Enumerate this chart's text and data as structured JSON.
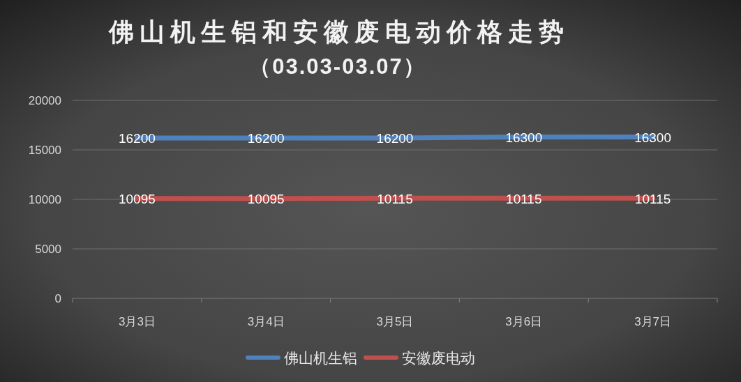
{
  "chart_data": {
    "type": "line",
    "title": "佛山机生铝和安徽废电动价格走势",
    "subtitle": "（03.03-03.07）",
    "categories": [
      "3月3日",
      "3月4日",
      "3月5日",
      "3月6日",
      "3月7日"
    ],
    "series": [
      {
        "name": "佛山机生铝",
        "color": "#4f81bd",
        "values": [
          16200,
          16200,
          16200,
          16300,
          16300
        ]
      },
      {
        "name": "安徽废电动",
        "color": "#c0504d",
        "values": [
          10095,
          10095,
          10115,
          10115,
          10115
        ]
      }
    ],
    "ylim": [
      0,
      20000
    ],
    "yticks": [
      0,
      5000,
      10000,
      15000,
      20000
    ],
    "grid": "y",
    "legend": "bottom",
    "data_labels": true
  }
}
